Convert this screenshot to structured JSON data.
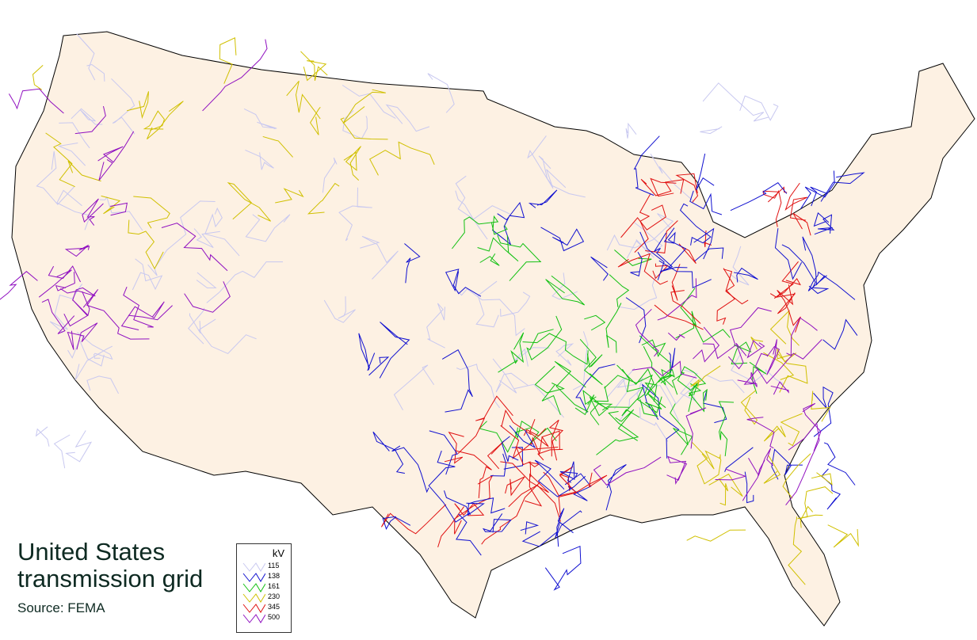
{
  "title_line1": "United States",
  "title_line2": "transmission grid",
  "source": "Source: FEMA",
  "legend": {
    "unit": "kV",
    "items": [
      {
        "label": "115",
        "color": "#c8c8f0"
      },
      {
        "label": "138",
        "color": "#1010d0"
      },
      {
        "label": "161",
        "color": "#10c010"
      },
      {
        "label": "230",
        "color": "#d0c000"
      },
      {
        "label": "345",
        "color": "#e01010"
      },
      {
        "label": "500",
        "color": "#9010c0"
      }
    ]
  },
  "colors": {
    "land": "#fdf1e3",
    "border": "#000000",
    "background": "#ffffff"
  }
}
